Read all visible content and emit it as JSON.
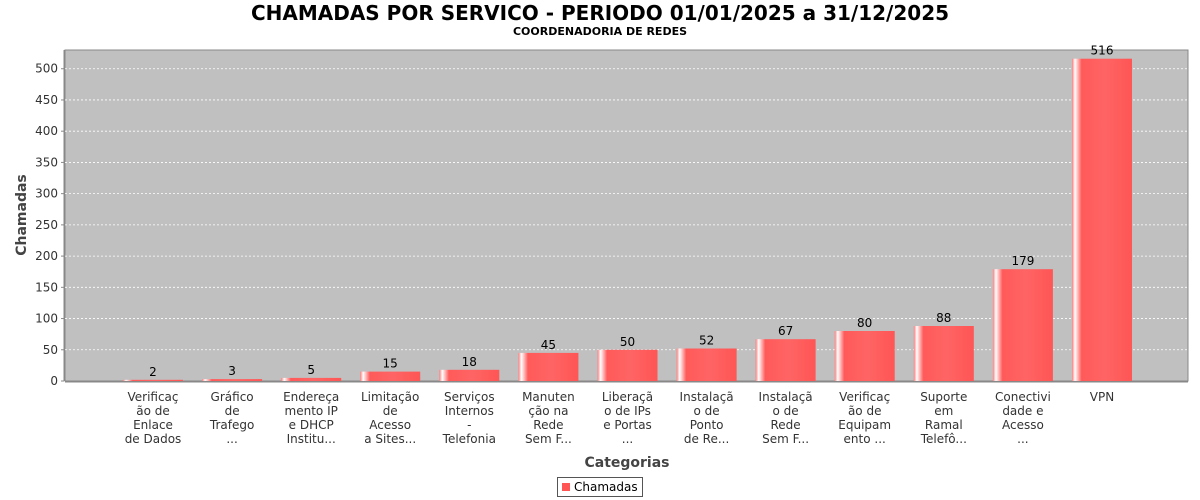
{
  "chart_data": {
    "type": "bar",
    "title": "CHAMADAS POR SERVICO - PERIODO 01/01/2025 a 31/12/2025",
    "subtitle": "COORDENADORIA DE REDES",
    "xlabel": "Categorias",
    "ylabel": "Chamadas",
    "ylim": [
      0,
      530
    ],
    "yticks": [
      0,
      50,
      100,
      150,
      200,
      250,
      300,
      350,
      400,
      450,
      500
    ],
    "grid": true,
    "legend_position": "bottom",
    "bar_color": "#ff5555",
    "plot_background": "#c0c0c0",
    "categories": [
      [
        "Verificaç",
        "ão de",
        "Enlace",
        "de Dados"
      ],
      [
        "Gráfico",
        "de",
        "Trafego",
        "..."
      ],
      [
        "Endereça",
        "mento IP",
        "e DHCP",
        "Institu..."
      ],
      [
        "Limitação",
        "de",
        "Acesso",
        "a Sites..."
      ],
      [
        "Serviços",
        "Internos",
        "-",
        "Telefonia"
      ],
      [
        "Manuten",
        "ção na",
        "Rede",
        "Sem F..."
      ],
      [
        "Liberaçã",
        "o de IPs",
        "e Portas",
        "..."
      ],
      [
        "Instalaçã",
        "o de",
        "Ponto",
        "de Re..."
      ],
      [
        "Instalaçã",
        "o de",
        "Rede",
        "Sem F..."
      ],
      [
        "Verificaç",
        "ão de",
        "Equipam",
        "ento ..."
      ],
      [
        "Suporte",
        "em",
        "Ramal",
        "Telefô..."
      ],
      [
        "Conectivi",
        "dade e",
        "Acesso",
        "..."
      ],
      [
        "VPN"
      ]
    ],
    "series": [
      {
        "name": "Chamadas",
        "values": [
          2,
          3,
          5,
          15,
          18,
          45,
          50,
          52,
          67,
          80,
          88,
          179,
          516
        ]
      }
    ]
  }
}
